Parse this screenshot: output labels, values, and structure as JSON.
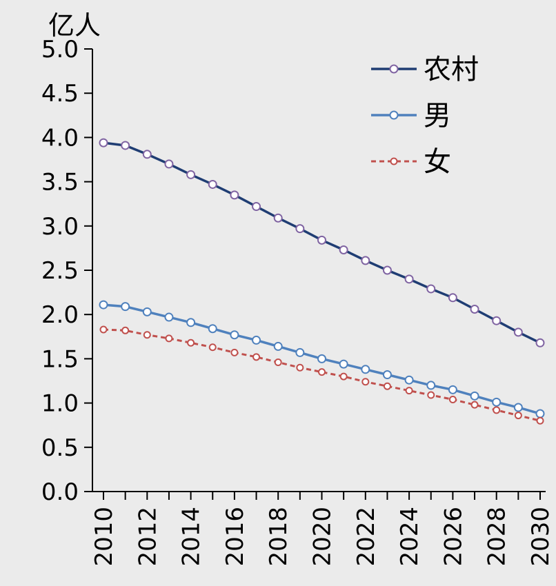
{
  "chart_data": {
    "type": "line",
    "ylabel": "亿人",
    "xlabel": "",
    "ylim": [
      0,
      5
    ],
    "y_ticks": [
      "0.0",
      "0.5",
      "1.0",
      "1.5",
      "2.0",
      "2.5",
      "3.0",
      "3.5",
      "4.0",
      "4.5",
      "5.0"
    ],
    "x": [
      2010,
      2011,
      2012,
      2013,
      2014,
      2015,
      2016,
      2017,
      2018,
      2019,
      2020,
      2021,
      2022,
      2023,
      2024,
      2025,
      2026,
      2027,
      2028,
      2029,
      2030
    ],
    "x_ticks": [
      "2010",
      "2012",
      "2014",
      "2016",
      "2018",
      "2020",
      "2022",
      "2024",
      "2026",
      "2028",
      "2030"
    ],
    "grid": false,
    "legend_position": "top-right",
    "series": [
      {
        "name": "农村",
        "color": "#1f3d73",
        "marker_color": "#8064a2",
        "dashed": false,
        "values": [
          3.94,
          3.91,
          3.81,
          3.7,
          3.58,
          3.47,
          3.35,
          3.22,
          3.09,
          2.97,
          2.84,
          2.73,
          2.61,
          2.5,
          2.4,
          2.29,
          2.19,
          2.06,
          1.93,
          1.8,
          1.68
        ]
      },
      {
        "name": "男",
        "color": "#4f81bd",
        "marker_color": "#4f81bd",
        "dashed": false,
        "values": [
          2.11,
          2.09,
          2.03,
          1.97,
          1.91,
          1.84,
          1.77,
          1.71,
          1.64,
          1.57,
          1.5,
          1.44,
          1.38,
          1.32,
          1.26,
          1.2,
          1.15,
          1.08,
          1.01,
          0.95,
          0.88
        ]
      },
      {
        "name": "女",
        "color": "#c0504d",
        "marker_color": "#c0504d",
        "dashed": true,
        "values": [
          1.83,
          1.82,
          1.77,
          1.73,
          1.68,
          1.63,
          1.57,
          1.52,
          1.46,
          1.4,
          1.35,
          1.3,
          1.24,
          1.19,
          1.14,
          1.09,
          1.04,
          0.98,
          0.92,
          0.86,
          0.8
        ]
      }
    ]
  }
}
